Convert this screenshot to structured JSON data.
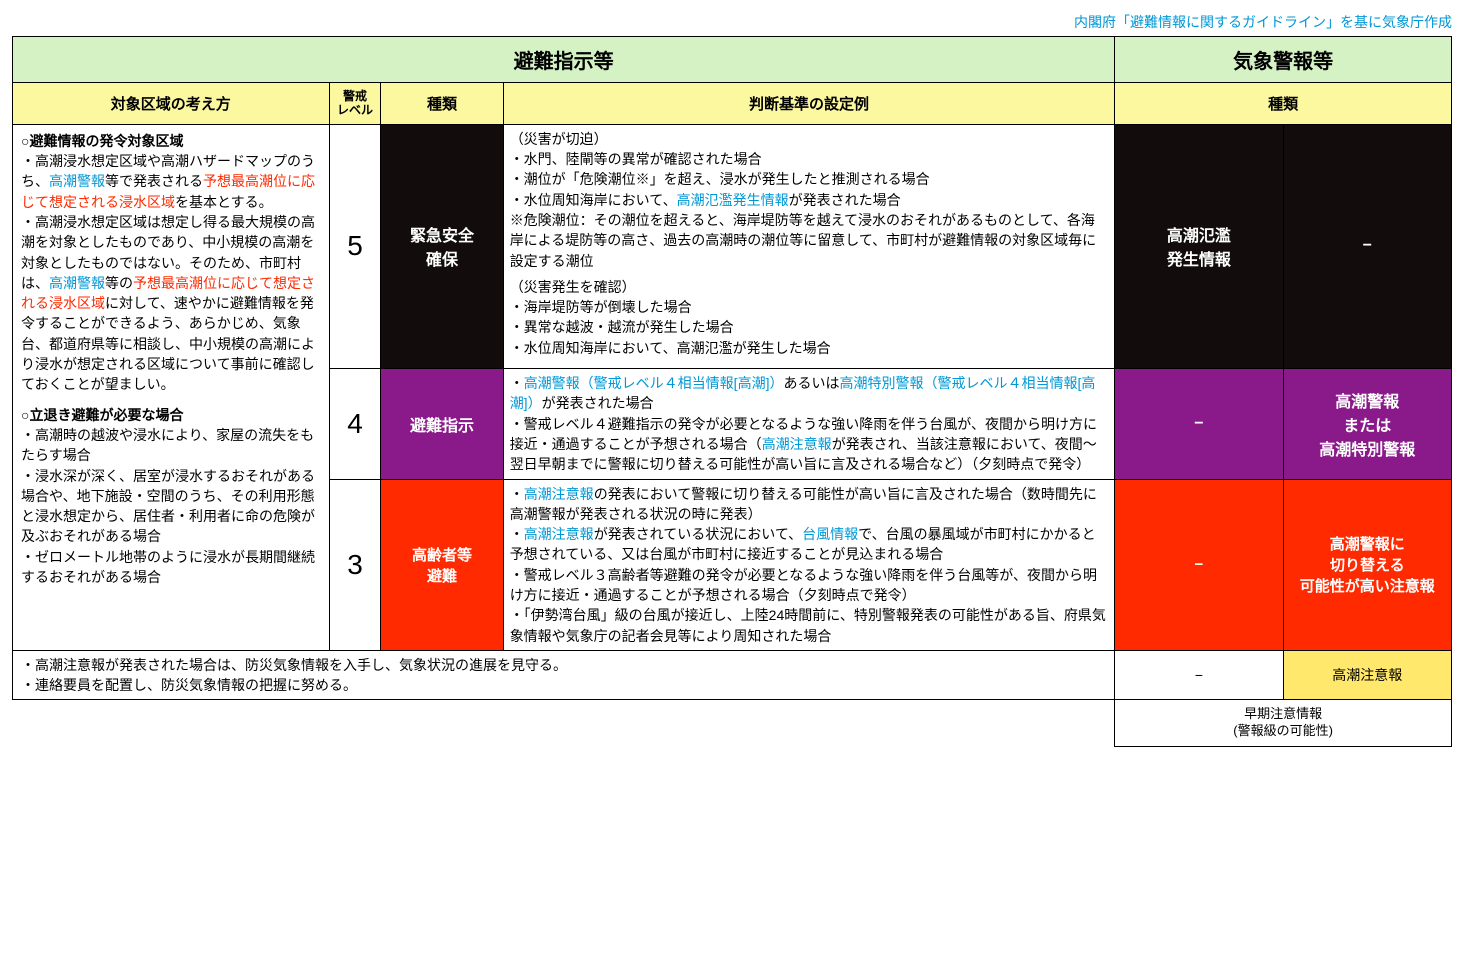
{
  "colors": {
    "green_header": "#d4f2c4",
    "yellow_header": "#fbf8a0",
    "black_cell": "#120c0c",
    "purple_cell": "#8a1a8a",
    "red_cell": "#ff2a00",
    "yellow_cell": "#ffe86b",
    "link_blue": "#0097d6",
    "credit_blue": "#0b3fa8",
    "red_text": "#ff2a00",
    "border": "#000000",
    "bg": "#ffffff"
  },
  "credit": "内閣府「避難情報に関するガイドライン」を基に気象庁作成",
  "header": {
    "left_group": "避難指示等",
    "right_group": "気象警報等",
    "col_region": "対象区域の考え方",
    "col_level": "警戒\nレベル",
    "col_type": "種類",
    "col_criteria": "判断基準の設定例",
    "col_met_type": "種類"
  },
  "region": {
    "h1": "○避難情報の発令対象区域",
    "p1a": "・高潮浸水想定区域や高潮ハザードマップのうち、",
    "p1b": "高潮警報",
    "p1c": "等で発表される",
    "p1d": "予想最高潮位に応じて想定される浸水区域",
    "p1e": "を基本とする。",
    "p2a": "・高潮浸水想定区域は想定し得る最大規模の高潮を対象としたものであり、中小規模の高潮を対象としたものではない。そのため、市町村は、",
    "p2b": "高潮警報",
    "p2c": "等の",
    "p2d": "予想最高潮位に応じて想定される浸水区域",
    "p2e": "に対して、速やかに避難情報を発令することができるよう、あらかじめ、気象台、都道府県等に相談し、中小規模の高潮により浸水が想定される区域について事前に確認しておくことが望ましい。",
    "h2": "○立退き避難が必要な場合",
    "p3": "・高潮時の越波や浸水により、家屋の流失をもたらす場合",
    "p4": "・浸水深が深く、居室が浸水するおそれがある場合や、地下施設・空間のうち、その利用形態と浸水想定から、居住者・利用者に命の危険が及ぶおそれがある場合",
    "p5": "・ゼロメートル地帯のように浸水が長期間継続するおそれがある場合"
  },
  "rows": [
    {
      "level": "5",
      "type": "緊急安全\n確保",
      "criteria_html": "lvl5",
      "met1": "高潮氾濫\n発生情報",
      "met2": "−",
      "row_class": "cell-black"
    },
    {
      "level": "4",
      "type": "避難指示",
      "criteria_html": "lvl4",
      "met1": "−",
      "met2": "高潮警報\nまたは\n高潮特別警報",
      "row_class": "cell-purple"
    },
    {
      "level": "3",
      "type": "高齢者等\n避難",
      "criteria_html": "lvl3",
      "met1": "−",
      "met2": "高潮警報に\n切り替える\n可能性が高い注意報",
      "row_class": "cell-red"
    }
  ],
  "criteria": {
    "lvl5": {
      "sec1_title": "（災害が切迫）",
      "sec1_items": [
        "・水門、陸閘等の異常が確認された場合",
        "・潮位が「危険潮位※」を超え、浸水が発生したと推測される場合"
      ],
      "sec1_item3_a": "・水位周知海岸において、",
      "sec1_item3_b": "高潮氾濫発生情報",
      "sec1_item3_c": "が発表された場合",
      "note": "※危険潮位：その潮位を超えると、海岸堤防等を越えて浸水のおそれがあるものとして、各海岸による堤防等の高さ、過去の高潮時の潮位等に留意して、市町村が避難情報の対象区域毎に設定する潮位",
      "sec2_title": "（災害発生を確認）",
      "sec2_items": [
        "・海岸堤防等が倒壊した場合",
        "・異常な越波・越流が発生した場合",
        "・水位周知海岸において、高潮氾濫が発生した場合"
      ]
    },
    "lvl4": {
      "item1_a": "・",
      "item1_b": "高潮警報（警戒レベル４相当情報[高潮]）",
      "item1_c": "あるいは",
      "item1_d": "高潮特別警報（警戒レベル４相当情報[高潮]）",
      "item1_e": "が発表された場合",
      "item2_a": "・警戒レベル４避難指示の発令が必要となるような強い降雨を伴う台風が、夜間から明け方に接近・通過することが予想される場合（",
      "item2_b": "高潮注意報",
      "item2_c": "が発表され、当該注意報において、夜間～翌日早朝までに警報に切り替える可能性が高い旨に言及される場合など）（夕刻時点で発令）"
    },
    "lvl3": {
      "item1_a": "・",
      "item1_b": "高潮注意報",
      "item1_c": "の発表において警報に切り替える可能性が高い旨に言及された場合（数時間先に高潮警報が発表される状況の時に発表）",
      "item2_a": "・",
      "item2_b": "高潮注意報",
      "item2_c": "が発表されている状況において、",
      "item2_d": "台風情報",
      "item2_e": "で、台風の暴風域が市町村にかかると予想されている、又は台風が市町村に接近することが見込まれる場合",
      "item3": "・警戒レベル３高齢者等避難の発令が必要となるような強い降雨を伴う台風等が、夜間から明け方に接近・通過することが予想される場合（夕刻時点で発令）",
      "item4": "・「伊勢湾台風」級の台風が接近し、上陸24時間前に、特別警報発表の可能性がある旨、府県気象情報や気象庁の記者会見等により周知された場合"
    }
  },
  "footer": {
    "line1": "・高潮注意報が発表された場合は、防災気象情報を入手し、気象状況の進展を見守る。",
    "line2": "・連絡要員を配置し、防災気象情報の把握に努める。",
    "met1": "−",
    "met2": "高潮注意報",
    "early": "早期注意情報\n(警報級の可能性)"
  },
  "column_widths_pct": [
    22,
    3.6,
    8.5,
    42.5,
    11.7,
    11.7
  ]
}
